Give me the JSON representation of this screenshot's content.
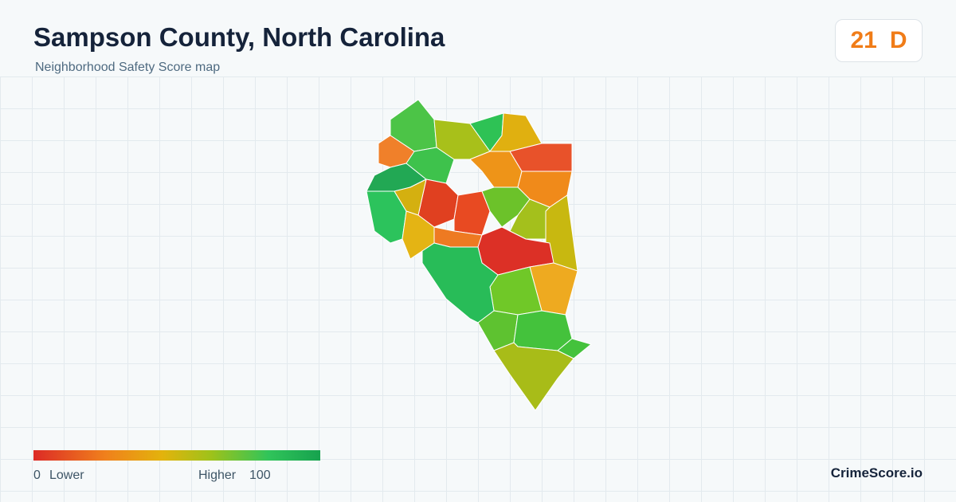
{
  "header": {
    "title": "Sampson County, North Carolina",
    "subtitle": "Neighborhood Safety Score map"
  },
  "score": {
    "value": 21,
    "grade": "D"
  },
  "legend": {
    "min": 0,
    "low_label": "Lower",
    "high_label": "Higher",
    "max": 100
  },
  "brand": "CrimeScore.io"
}
